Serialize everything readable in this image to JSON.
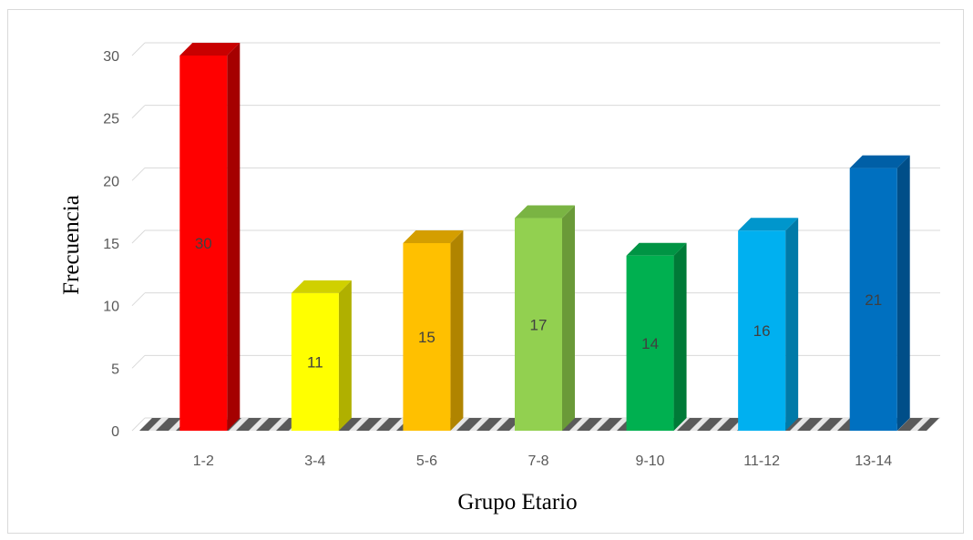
{
  "chart_data": {
    "type": "bar",
    "title": "",
    "xlabel": "Grupo Etario",
    "ylabel": "Frecuencia",
    "categories": [
      "1-2",
      "3-4",
      "5-6",
      "7-8",
      "9-10",
      "11-12",
      "13-14"
    ],
    "series": [
      {
        "values": [
          30,
          11,
          15,
          17,
          14,
          16,
          21
        ]
      }
    ],
    "bar_colors": [
      "#FF0000",
      "#FFFF00",
      "#FFC000",
      "#92D050",
      "#00B050",
      "#00B0F0",
      "#0070C0"
    ],
    "side_colors": [
      "#A50000",
      "#B0B000",
      "#B08400",
      "#6A9A38",
      "#007A37",
      "#007AA8",
      "#004E88"
    ],
    "top_colors": [
      "#C80000",
      "#D0D000",
      "#D49E00",
      "#7AB443",
      "#009444",
      "#0096CC",
      "#005FA6"
    ],
    "ylim": [
      0,
      30
    ],
    "yticks": [
      0,
      5,
      10,
      15,
      20,
      25,
      30
    ],
    "grid": true,
    "legend": "none",
    "style": "3d-columns"
  }
}
